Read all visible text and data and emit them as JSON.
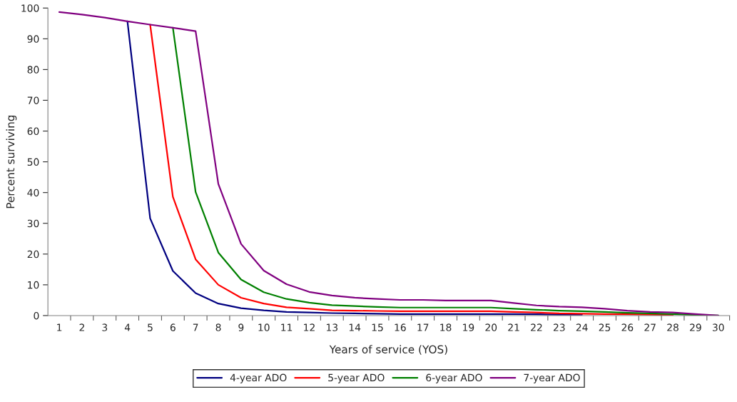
{
  "chart_data": {
    "type": "line",
    "xlabel": "Years of service (YOS)",
    "ylabel": "Percent surviving",
    "categories": [
      "1",
      "2",
      "3",
      "4",
      "5",
      "6",
      "7",
      "8",
      "9",
      "10",
      "11",
      "12",
      "13",
      "14",
      "15",
      "16",
      "17",
      "18",
      "19",
      "20",
      "21",
      "22",
      "23",
      "24",
      "25",
      "26",
      "27",
      "28",
      "29",
      "30"
    ],
    "ylim": [
      0,
      100
    ],
    "yticks": [
      0,
      10,
      20,
      30,
      40,
      50,
      60,
      70,
      80,
      90,
      100
    ],
    "grid": false,
    "legend": "bottom",
    "marker": "none",
    "line_style": "solid",
    "series": [
      {
        "name": "4-year ADO",
        "color": "#000080",
        "values": [
          null,
          null,
          null,
          95.7,
          31.6,
          14.5,
          7.3,
          3.9,
          2.4,
          1.7,
          1.2,
          1.0,
          0.8,
          0.7,
          0.6,
          0.5,
          0.5,
          0.5,
          0.5,
          0.5,
          0.5,
          0.4,
          0.3,
          0.3,
          null,
          null,
          null,
          null,
          null,
          null
        ]
      },
      {
        "name": "5-year ADO",
        "color": "#ff0000",
        "values": [
          null,
          null,
          null,
          null,
          94.6,
          38.6,
          18.3,
          10.0,
          5.8,
          3.9,
          2.7,
          2.2,
          1.7,
          1.6,
          1.5,
          1.4,
          1.4,
          1.4,
          1.4,
          1.4,
          1.2,
          1.0,
          0.7,
          0.6,
          0.5,
          0.4,
          0.3,
          0.2,
          null,
          null
        ]
      },
      {
        "name": "6-year ADO",
        "color": "#008000",
        "values": [
          null,
          null,
          null,
          null,
          null,
          93.6,
          40.2,
          20.5,
          11.7,
          7.6,
          5.4,
          4.2,
          3.4,
          3.1,
          2.8,
          2.6,
          2.6,
          2.6,
          2.6,
          2.6,
          2.2,
          1.9,
          1.6,
          1.4,
          1.2,
          0.9,
          0.7,
          0.5,
          0.2,
          0
        ]
      },
      {
        "name": "7-year ADO",
        "color": "#800080",
        "values": [
          98.7,
          97.9,
          96.9,
          95.7,
          94.6,
          93.6,
          92.5,
          42.8,
          23.3,
          14.6,
          10.2,
          7.7,
          6.5,
          5.8,
          5.4,
          5.1,
          5.1,
          4.9,
          4.9,
          4.9,
          4.1,
          3.3,
          2.9,
          2.7,
          2.2,
          1.6,
          1.2,
          1.0,
          0.5,
          0
        ]
      }
    ]
  }
}
